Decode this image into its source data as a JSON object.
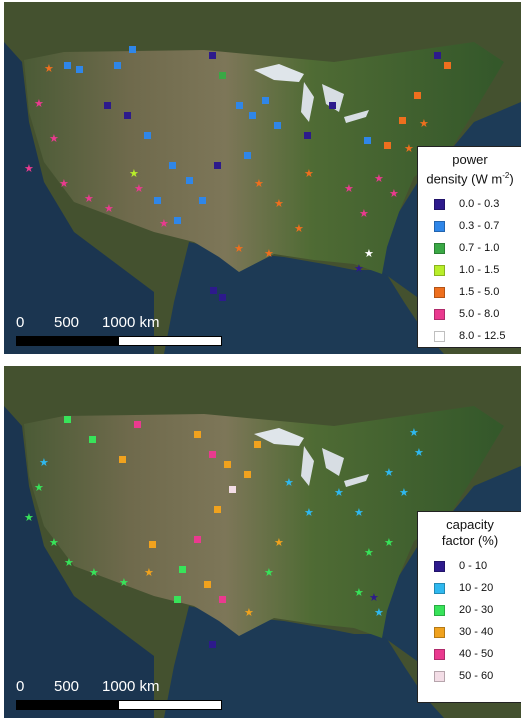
{
  "panels": [
    {
      "id": "power-density",
      "legend": {
        "title_line1": "power",
        "title_line2": "density (W m",
        "title_sup": "-2",
        "title_end": ")",
        "items": [
          {
            "label": "0.0 - 0.3",
            "color": "#2d1a8c"
          },
          {
            "label": "0.3 - 0.7",
            "color": "#2f86e8"
          },
          {
            "label": "0.7 - 1.0",
            "color": "#3aa845"
          },
          {
            "label": "1.0 - 1.5",
            "color": "#b8ee2a"
          },
          {
            "label": "1.5 - 5.0",
            "color": "#ee6f1e"
          },
          {
            "label": "5.0 - 8.0",
            "color": "#ea3a8f"
          },
          {
            "label": "8.0 - 12.5",
            "color": "#ffffff"
          }
        ]
      }
    },
    {
      "id": "capacity-factor",
      "legend": {
        "title_line1": "capacity",
        "title_line2": "factor (%)",
        "items": [
          {
            "label": "0 - 10",
            "color": "#2d1a8c"
          },
          {
            "label": "10 - 20",
            "color": "#2fb8ef"
          },
          {
            "label": "20 - 30",
            "color": "#38e35a"
          },
          {
            "label": "30 - 40",
            "color": "#f0a21e"
          },
          {
            "label": "40 - 50",
            "color": "#ea3a8f"
          },
          {
            "label": "50 - 60",
            "color": "#f3dde6"
          }
        ]
      }
    }
  ],
  "scalebar": {
    "labels": [
      "0",
      "500",
      "1000 km"
    ]
  }
}
